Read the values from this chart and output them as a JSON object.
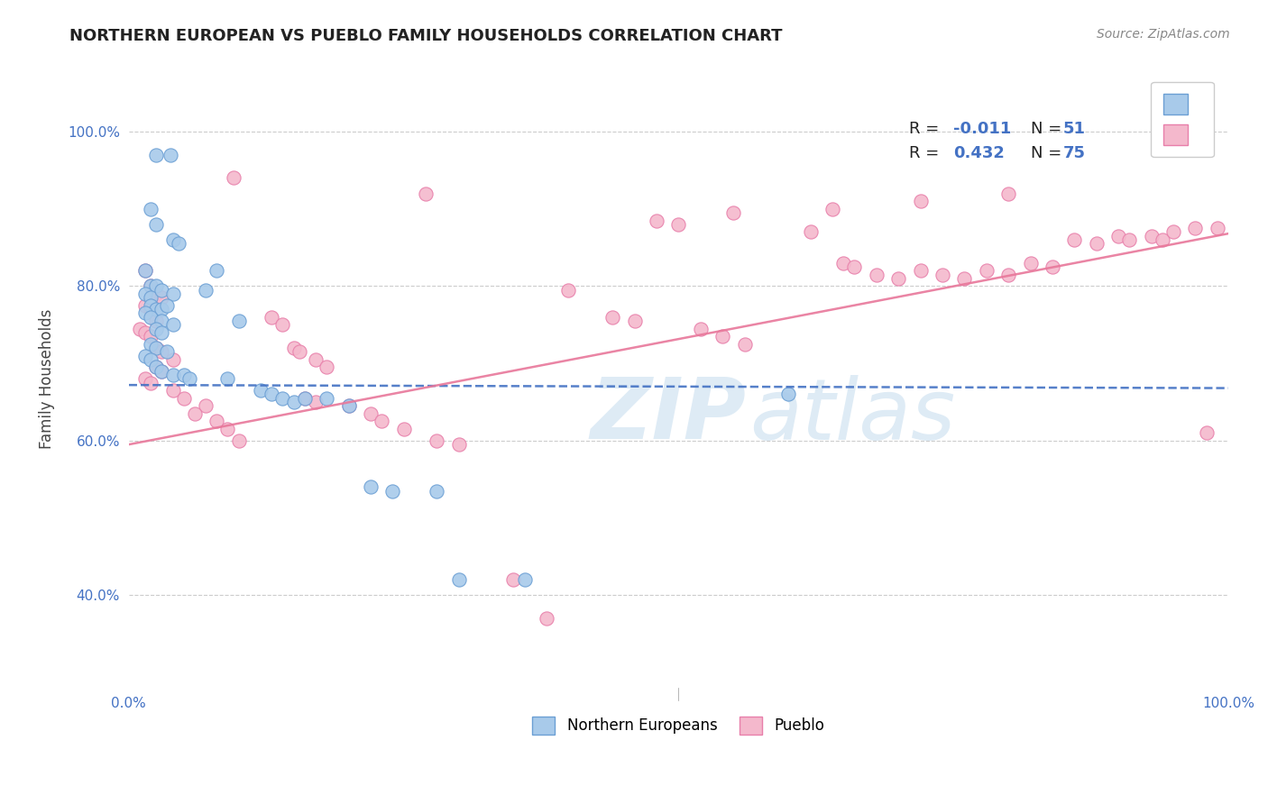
{
  "title": "NORTHERN EUROPEAN VS PUEBLO FAMILY HOUSEHOLDS CORRELATION CHART",
  "source": "Source: ZipAtlas.com",
  "ylabel": "Family Households",
  "xlim": [
    0,
    1
  ],
  "ylim": [
    0.28,
    1.08
  ],
  "yticks": [
    0.4,
    0.6,
    0.8,
    1.0
  ],
  "ytick_labels": [
    "40.0%",
    "60.0%",
    "80.0%",
    "100.0%"
  ],
  "xticks": [
    0.0,
    1.0
  ],
  "xtick_labels": [
    "0.0%",
    "100.0%"
  ],
  "blue_color": "#A8CAEA",
  "pink_color": "#F4B8CC",
  "blue_edge_color": "#6B9FD4",
  "pink_edge_color": "#E87FAA",
  "blue_line_color": "#4472C4",
  "pink_line_color": "#E8779A",
  "grid_color": "#CCCCCC",
  "blue_trend": [
    0.0,
    0.672,
    1.0,
    0.668
  ],
  "pink_trend": [
    0.0,
    0.595,
    1.0,
    0.868
  ],
  "blue_dots": [
    [
      0.025,
      0.97
    ],
    [
      0.038,
      0.97
    ],
    [
      0.02,
      0.9
    ],
    [
      0.025,
      0.88
    ],
    [
      0.04,
      0.86
    ],
    [
      0.045,
      0.855
    ],
    [
      0.015,
      0.82
    ],
    [
      0.02,
      0.8
    ],
    [
      0.025,
      0.8
    ],
    [
      0.015,
      0.79
    ],
    [
      0.02,
      0.785
    ],
    [
      0.03,
      0.795
    ],
    [
      0.04,
      0.79
    ],
    [
      0.02,
      0.775
    ],
    [
      0.025,
      0.77
    ],
    [
      0.03,
      0.77
    ],
    [
      0.035,
      0.775
    ],
    [
      0.015,
      0.765
    ],
    [
      0.02,
      0.76
    ],
    [
      0.03,
      0.755
    ],
    [
      0.04,
      0.75
    ],
    [
      0.025,
      0.745
    ],
    [
      0.03,
      0.74
    ],
    [
      0.02,
      0.725
    ],
    [
      0.025,
      0.72
    ],
    [
      0.035,
      0.715
    ],
    [
      0.015,
      0.71
    ],
    [
      0.02,
      0.705
    ],
    [
      0.025,
      0.695
    ],
    [
      0.03,
      0.69
    ],
    [
      0.04,
      0.685
    ],
    [
      0.05,
      0.685
    ],
    [
      0.055,
      0.68
    ],
    [
      0.07,
      0.795
    ],
    [
      0.08,
      0.82
    ],
    [
      0.09,
      0.68
    ],
    [
      0.1,
      0.755
    ],
    [
      0.12,
      0.665
    ],
    [
      0.13,
      0.66
    ],
    [
      0.14,
      0.655
    ],
    [
      0.15,
      0.65
    ],
    [
      0.16,
      0.655
    ],
    [
      0.18,
      0.655
    ],
    [
      0.2,
      0.645
    ],
    [
      0.22,
      0.54
    ],
    [
      0.24,
      0.535
    ],
    [
      0.28,
      0.535
    ],
    [
      0.3,
      0.42
    ],
    [
      0.36,
      0.42
    ],
    [
      0.6,
      0.66
    ]
  ],
  "pink_dots": [
    [
      0.015,
      0.82
    ],
    [
      0.02,
      0.8
    ],
    [
      0.025,
      0.79
    ],
    [
      0.03,
      0.785
    ],
    [
      0.015,
      0.775
    ],
    [
      0.02,
      0.77
    ],
    [
      0.025,
      0.755
    ],
    [
      0.01,
      0.745
    ],
    [
      0.015,
      0.74
    ],
    [
      0.02,
      0.735
    ],
    [
      0.025,
      0.72
    ],
    [
      0.03,
      0.715
    ],
    [
      0.04,
      0.705
    ],
    [
      0.025,
      0.695
    ],
    [
      0.03,
      0.69
    ],
    [
      0.015,
      0.68
    ],
    [
      0.02,
      0.675
    ],
    [
      0.04,
      0.665
    ],
    [
      0.05,
      0.655
    ],
    [
      0.07,
      0.645
    ],
    [
      0.06,
      0.635
    ],
    [
      0.08,
      0.625
    ],
    [
      0.09,
      0.615
    ],
    [
      0.1,
      0.6
    ],
    [
      0.095,
      0.94
    ],
    [
      0.13,
      0.76
    ],
    [
      0.14,
      0.75
    ],
    [
      0.15,
      0.72
    ],
    [
      0.155,
      0.715
    ],
    [
      0.17,
      0.705
    ],
    [
      0.18,
      0.695
    ],
    [
      0.16,
      0.655
    ],
    [
      0.17,
      0.65
    ],
    [
      0.2,
      0.645
    ],
    [
      0.22,
      0.635
    ],
    [
      0.23,
      0.625
    ],
    [
      0.25,
      0.615
    ],
    [
      0.28,
      0.6
    ],
    [
      0.3,
      0.595
    ],
    [
      0.35,
      0.42
    ],
    [
      0.38,
      0.37
    ],
    [
      0.4,
      0.795
    ],
    [
      0.44,
      0.76
    ],
    [
      0.46,
      0.755
    ],
    [
      0.5,
      0.88
    ],
    [
      0.52,
      0.745
    ],
    [
      0.54,
      0.735
    ],
    [
      0.56,
      0.725
    ],
    [
      0.62,
      0.87
    ],
    [
      0.65,
      0.83
    ],
    [
      0.66,
      0.825
    ],
    [
      0.68,
      0.815
    ],
    [
      0.7,
      0.81
    ],
    [
      0.72,
      0.82
    ],
    [
      0.74,
      0.815
    ],
    [
      0.76,
      0.81
    ],
    [
      0.78,
      0.82
    ],
    [
      0.8,
      0.815
    ],
    [
      0.82,
      0.83
    ],
    [
      0.84,
      0.825
    ],
    [
      0.86,
      0.86
    ],
    [
      0.88,
      0.855
    ],
    [
      0.9,
      0.865
    ],
    [
      0.91,
      0.86
    ],
    [
      0.93,
      0.865
    ],
    [
      0.94,
      0.86
    ],
    [
      0.95,
      0.87
    ],
    [
      0.97,
      0.875
    ],
    [
      0.98,
      0.61
    ],
    [
      0.99,
      0.875
    ],
    [
      0.8,
      0.92
    ],
    [
      0.72,
      0.91
    ],
    [
      0.64,
      0.9
    ],
    [
      0.55,
      0.895
    ],
    [
      0.48,
      0.885
    ],
    [
      0.27,
      0.92
    ]
  ]
}
